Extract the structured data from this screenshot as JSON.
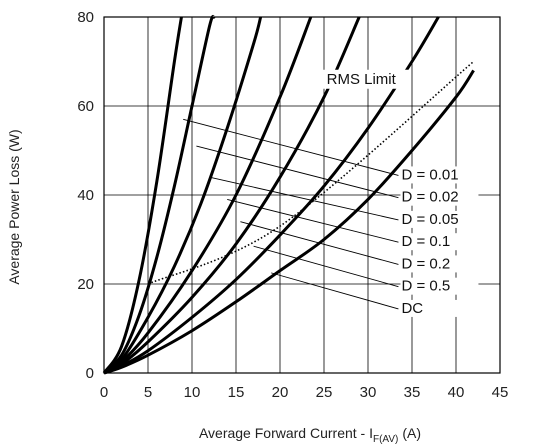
{
  "chart_data": {
    "type": "line",
    "title": "",
    "xlabel": "Average Forward Current - I",
    "xlabel_sub": "F(AV)",
    "xlabel_unit": "(A)",
    "ylabel": "Average Power Loss (W)",
    "xlim": [
      0,
      45
    ],
    "ylim": [
      0,
      80
    ],
    "x_ticks": [
      0,
      5,
      10,
      15,
      20,
      25,
      30,
      35,
      40,
      45
    ],
    "y_ticks": [
      0,
      20,
      40,
      60,
      80
    ],
    "grid": true,
    "series": [
      {
        "name": "D = 0.01",
        "style": "solid",
        "points": [
          [
            0,
            0
          ],
          [
            2,
            6
          ],
          [
            4,
            21
          ],
          [
            6,
            43
          ],
          [
            8,
            70
          ],
          [
            8.8,
            80
          ]
        ]
      },
      {
        "name": "D = 0.02",
        "style": "solid",
        "points": [
          [
            0,
            0
          ],
          [
            2,
            4
          ],
          [
            4,
            13
          ],
          [
            6,
            26
          ],
          [
            8,
            42
          ],
          [
            10,
            60
          ],
          [
            12,
            78
          ],
          [
            12.5,
            80
          ]
        ]
      },
      {
        "name": "D = 0.05",
        "style": "solid",
        "points": [
          [
            0,
            0
          ],
          [
            2,
            3
          ],
          [
            5,
            12.5
          ],
          [
            8,
            24
          ],
          [
            11,
            38
          ],
          [
            14,
            55
          ],
          [
            17,
            74
          ],
          [
            17.8,
            80
          ]
        ]
      },
      {
        "name": "D = 0.1",
        "style": "solid",
        "points": [
          [
            0,
            0
          ],
          [
            2,
            2.5
          ],
          [
            5,
            9
          ],
          [
            10,
            23
          ],
          [
            15,
            40
          ],
          [
            20,
            62
          ],
          [
            23.5,
            80
          ]
        ]
      },
      {
        "name": "D = 0.2",
        "style": "solid",
        "points": [
          [
            0,
            0
          ],
          [
            2,
            2
          ],
          [
            5,
            7
          ],
          [
            10,
            17
          ],
          [
            15,
            29
          ],
          [
            20,
            44
          ],
          [
            25,
            62
          ],
          [
            29,
            80
          ]
        ]
      },
      {
        "name": "D = 0.5",
        "style": "solid",
        "points": [
          [
            0,
            0
          ],
          [
            2,
            1.6
          ],
          [
            5,
            5
          ],
          [
            10,
            12.5
          ],
          [
            15,
            21
          ],
          [
            20,
            31
          ],
          [
            25,
            42
          ],
          [
            30,
            55
          ],
          [
            35,
            70
          ],
          [
            38,
            80
          ]
        ]
      },
      {
        "name": "DC",
        "style": "solid",
        "points": [
          [
            0,
            0
          ],
          [
            2,
            1.3
          ],
          [
            5,
            4
          ],
          [
            10,
            9.5
          ],
          [
            15,
            16
          ],
          [
            20,
            23
          ],
          [
            25,
            30
          ],
          [
            30,
            39
          ],
          [
            35,
            50
          ],
          [
            40,
            62
          ],
          [
            42,
            68
          ]
        ]
      },
      {
        "name": "RMS Limit",
        "style": "dotted",
        "points": [
          [
            5,
            20
          ],
          [
            20,
            33
          ],
          [
            42,
            70
          ]
        ]
      }
    ],
    "annotations": [
      {
        "text": "RMS Limit",
        "x": 25.3,
        "y": 65,
        "anchor": "start"
      },
      {
        "text": "D = 0.01",
        "x": 33.8,
        "y": 43.5,
        "anchor": "start",
        "leader_from": [
          9,
          57
        ]
      },
      {
        "text": "D = 0.02",
        "x": 33.8,
        "y": 38.5,
        "anchor": "start",
        "leader_from": [
          10.5,
          51
        ]
      },
      {
        "text": "D = 0.05",
        "x": 33.8,
        "y": 33.5,
        "anchor": "start",
        "leader_from": [
          12,
          44
        ]
      },
      {
        "text": "D = 0.1",
        "x": 33.8,
        "y": 28.5,
        "anchor": "start",
        "leader_from": [
          14,
          39
        ]
      },
      {
        "text": "D = 0.2",
        "x": 33.8,
        "y": 23.5,
        "anchor": "start",
        "leader_from": [
          15.5,
          34
        ]
      },
      {
        "text": "D = 0.5",
        "x": 33.8,
        "y": 18.5,
        "anchor": "start",
        "leader_from": [
          17,
          28.5
        ]
      },
      {
        "text": "DC",
        "x": 33.8,
        "y": 13.5,
        "anchor": "start",
        "leader_from": [
          19,
          22.5
        ]
      }
    ]
  }
}
